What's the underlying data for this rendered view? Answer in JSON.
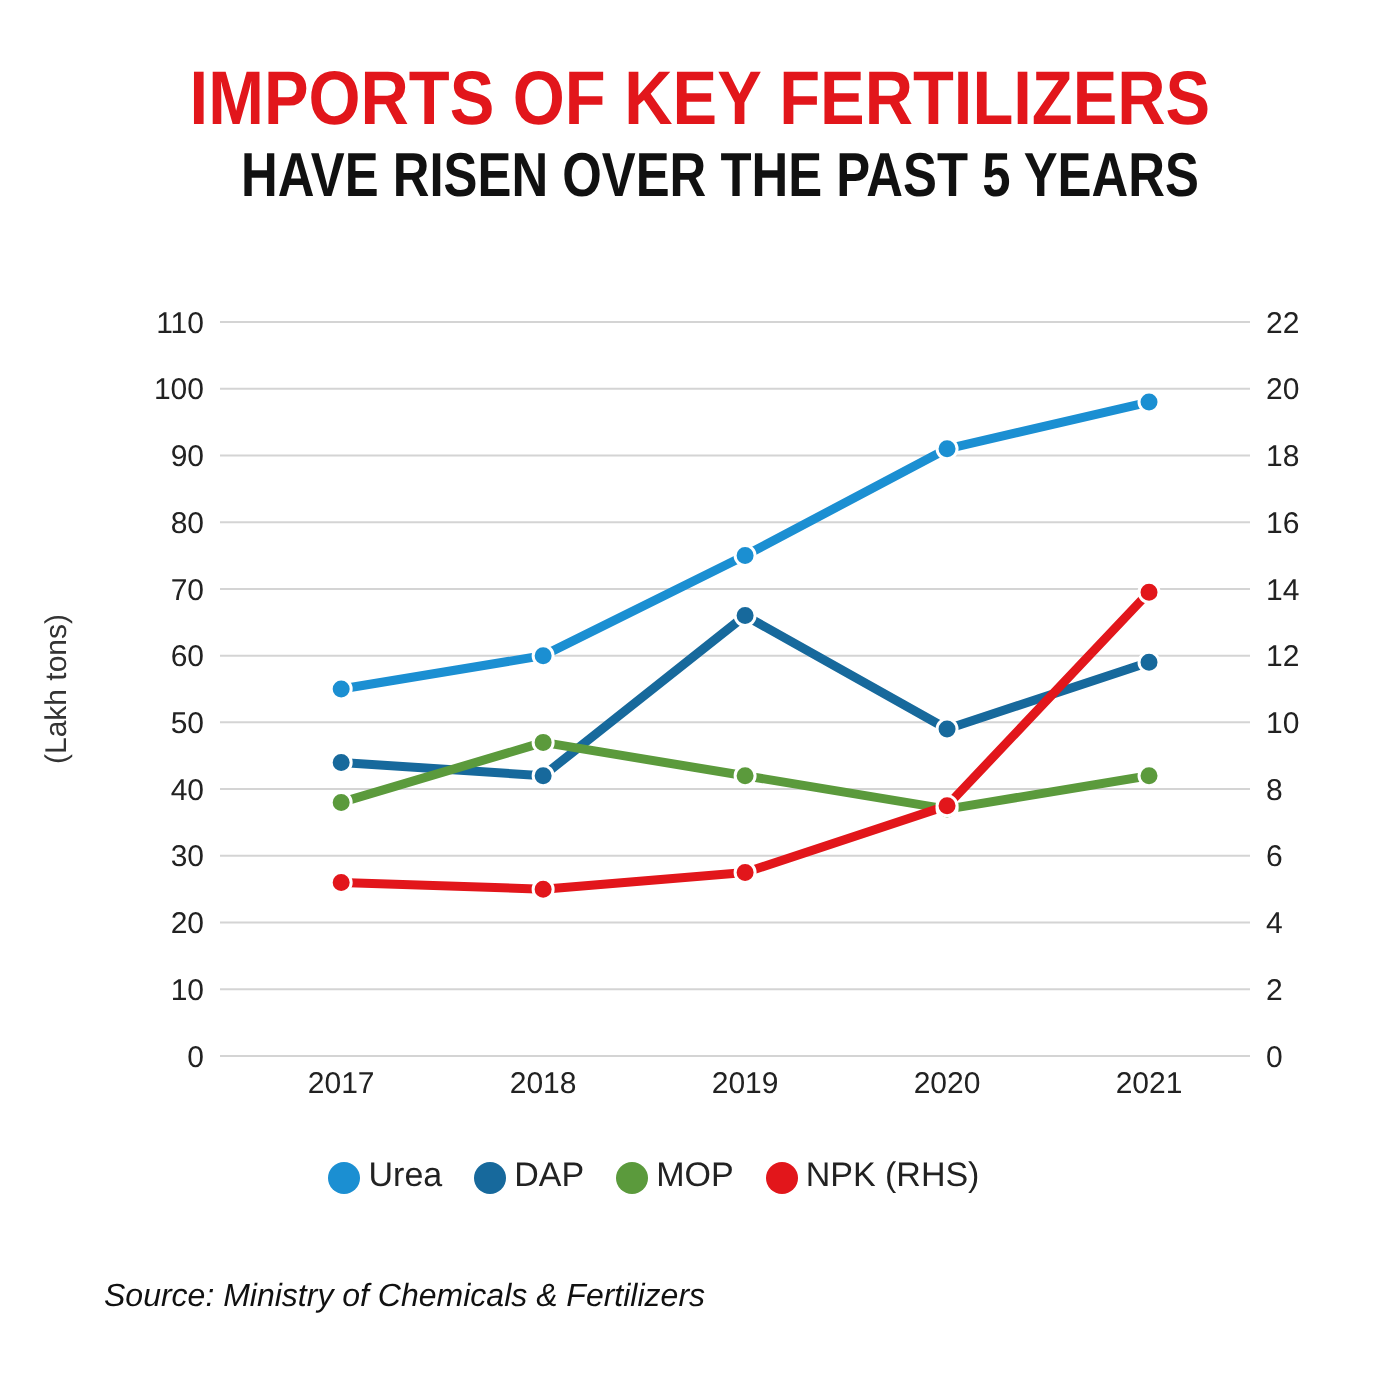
{
  "chart_data": {
    "type": "line",
    "title": "IMPORTS OF KEY FERTILIZERS",
    "subtitle": "HAVE RISEN OVER THE PAST 5 YEARS",
    "ylabel": "(Lakh tons)",
    "categories": [
      "2017",
      "2018",
      "2019",
      "2020",
      "2021"
    ],
    "series": [
      {
        "name": "Urea",
        "color": "#1b8fd2",
        "values": [
          55,
          60,
          75,
          91,
          98
        ]
      },
      {
        "name": "DAP",
        "color": "#17699c",
        "values": [
          44,
          42,
          66,
          49,
          59
        ]
      },
      {
        "name": "MOP",
        "color": "#5b9a3c",
        "values": [
          38,
          47,
          42,
          37,
          42
        ]
      },
      {
        "name": "NPK (RHS)",
        "color": "#e2161b",
        "values": [
          5.2,
          5.0,
          5.5,
          7.5,
          13.9
        ],
        "axis": "y2"
      }
    ],
    "ylim": [
      0,
      110
    ],
    "yticks": [
      0,
      10,
      20,
      30,
      40,
      50,
      60,
      70,
      80,
      90,
      100,
      110
    ],
    "y2lim": [
      0,
      22
    ],
    "y2ticks": [
      0,
      2,
      4,
      6,
      8,
      10,
      12,
      14,
      16,
      18,
      20,
      22
    ],
    "grid": "y",
    "legend": "bottom",
    "marker": "circle",
    "line_style": "solid",
    "annotations": [
      "Source: Ministry of Chemicals & Fertilizers"
    ]
  }
}
